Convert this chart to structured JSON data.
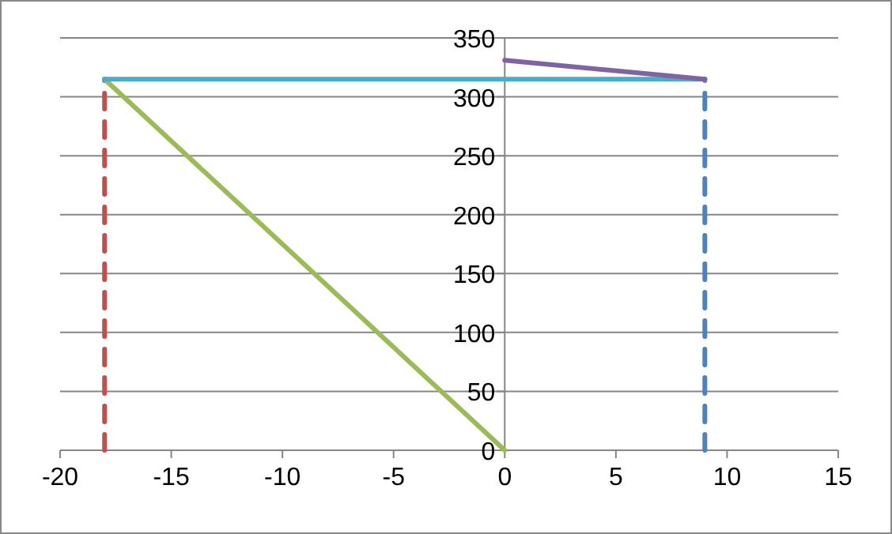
{
  "chart_data": {
    "type": "line",
    "xlim": [
      -20,
      15
    ],
    "xticks": [
      -20,
      -15,
      -10,
      -5,
      0,
      5,
      10,
      15
    ],
    "ylim": [
      0,
      350
    ],
    "yticks": [
      0,
      50,
      100,
      150,
      200,
      250,
      300,
      350
    ],
    "grid": "y",
    "marker": "none",
    "series": [
      {
        "x": [
          -18,
          -18
        ],
        "values": [
          0,
          315
        ],
        "color": "#c0504d",
        "line_style": "dashed"
      },
      {
        "x": [
          9,
          9
        ],
        "values": [
          0,
          315
        ],
        "color": "#4f81bd",
        "line_style": "dashed"
      },
      {
        "x": [
          -18,
          0
        ],
        "values": [
          315,
          0
        ],
        "color": "#9bbb59",
        "line_style": "solid"
      },
      {
        "x": [
          -18,
          9
        ],
        "values": [
          315,
          315
        ],
        "color": "#4bacc6",
        "line_style": "solid"
      },
      {
        "x": [
          0,
          9
        ],
        "values": [
          331,
          315
        ],
        "color": "#8064a2",
        "line_style": "solid"
      }
    ]
  }
}
